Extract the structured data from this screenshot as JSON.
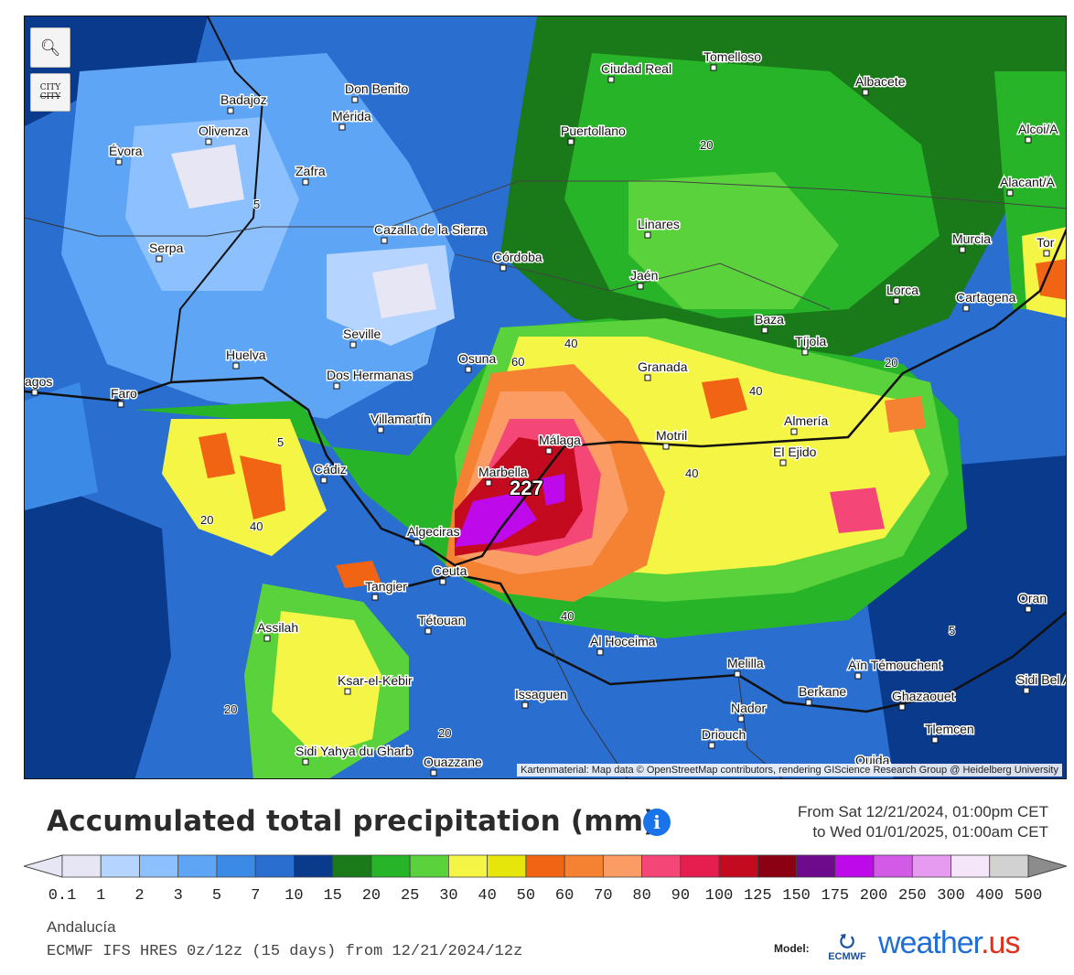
{
  "map": {
    "zoom_icon": "zoom-out-icon",
    "city_toggle_top": "CITY",
    "city_toggle_bottom": "CITY",
    "attribution": "Kartenmaterial: Map data © OpenStreetMap contributors, rendering GIScience Research Group @ Heidelberg University",
    "peak_value": "227",
    "cities": [
      "Badajoz",
      "Don Benito",
      "Mérida",
      "Ciudad Real",
      "Tomelloso",
      "Albacete",
      "Olivenza",
      "Évora",
      "Puertollano",
      "Alcoi/A",
      "Zafra",
      "Alacant/A",
      "Linares",
      "Murcia",
      "Cazalla de la Sierra",
      "Serpa",
      "Córdoba",
      "Jaén",
      "Lorca",
      "Cartagena",
      "Tor",
      "Baza",
      "Seville",
      "Tíjola",
      "Huelva",
      "Osuna",
      "Granada",
      "agos",
      "Dos Hermanas",
      "Faro",
      "Almería",
      "Villamartín",
      "Málaga",
      "Motril",
      "El Ejido",
      "Cádiz",
      "Marbella",
      "Algeciras",
      "Ceuta",
      "Tangier",
      "Tétouan",
      "Assilah",
      "Al Hoceima",
      "Oran",
      "Melilla",
      "Aïn Témouchent",
      "Sidi Bel Ab",
      "Ksar-el-Kebir",
      "Issaguen",
      "Berkane",
      "Nador",
      "Ghazaouet",
      "Tlemcen",
      "Driouch",
      "Sidi Yahya du Gharb",
      "Ouazzane",
      "Oujda"
    ],
    "contour_labels": [
      "5",
      "5",
      "5",
      "20",
      "20",
      "20",
      "20",
      "20",
      "40",
      "40",
      "40",
      "40",
      "40",
      "60"
    ]
  },
  "header": {
    "title": "Accumulated total precipitation (mm)",
    "info_icon": "info-icon",
    "range_from": "From Sat 12/21/2024, 01:00pm CET",
    "range_to": "to Wed 01/01/2025, 01:00am CET"
  },
  "legend": {
    "ticks": [
      "0.1",
      "1",
      "2",
      "3",
      "5",
      "7",
      "10",
      "15",
      "20",
      "25",
      "30",
      "40",
      "50",
      "60",
      "70",
      "80",
      "90",
      "100",
      "125",
      "150",
      "175",
      "200",
      "250",
      "300",
      "400",
      "500"
    ],
    "colors": [
      "#e6e6f5",
      "#b5d4ff",
      "#8cc0ff",
      "#5fa5f5",
      "#3a8ae6",
      "#2a6ed0",
      "#0a3a8c",
      "#1a7a1a",
      "#28b428",
      "#5ad23c",
      "#f5f546",
      "#e6e60a",
      "#f06414",
      "#f58232",
      "#fa9c64",
      "#f54678",
      "#e61e50",
      "#c30a1e",
      "#8c0014",
      "#6e0a8c",
      "#be0aeb",
      "#d25ae6",
      "#e69bf0",
      "#f5e6fa",
      "#d2d2d2"
    ]
  },
  "footer": {
    "region": "Andalucía",
    "model_line": "ECMWF IFS HRES 0z/12z (15 days) from 12/21/2024/12z",
    "model_label": "Model:",
    "ecmwf_text": "ECMWF",
    "brand": "weather",
    "brand_tld": ".us"
  }
}
